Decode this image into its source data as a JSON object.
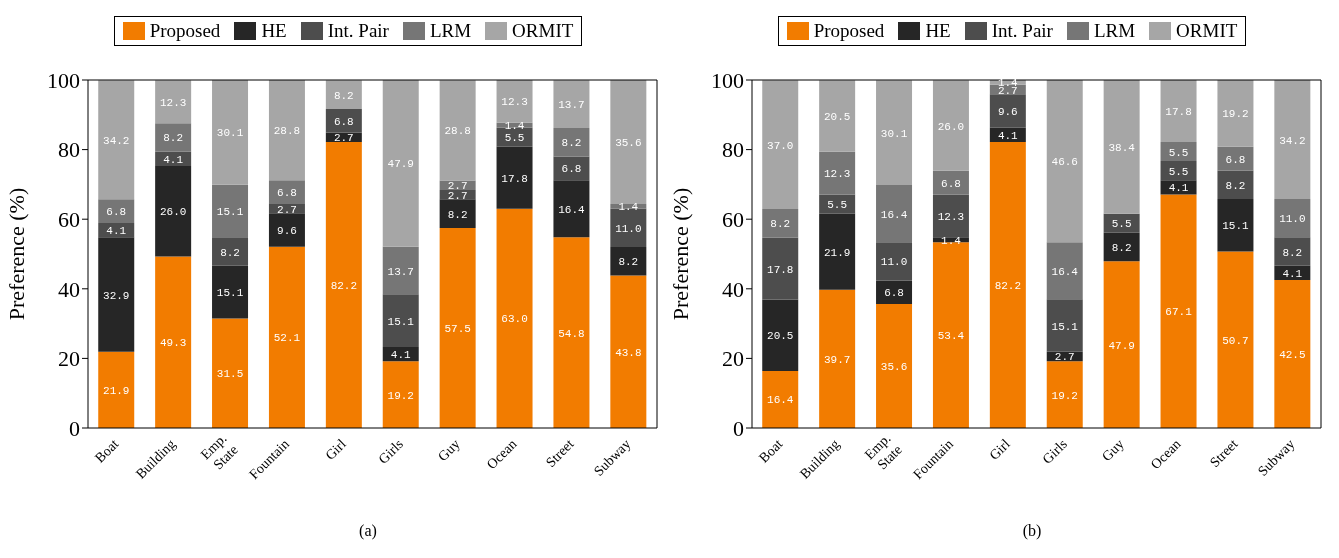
{
  "chart_data": [
    {
      "type": "bar",
      "stacked": true,
      "ylabel": "Preference (%)",
      "categories": [
        "Boat",
        "Building",
        "Emp. State",
        "Fountain",
        "Girl",
        "Girls",
        "Guy",
        "Ocean",
        "Street",
        "Subway"
      ],
      "ylim": [
        0,
        100
      ],
      "yticks": [
        0,
        20,
        40,
        60,
        80,
        100
      ],
      "legend": "top",
      "annotations": [
        "(a)"
      ],
      "series": [
        {
          "name": "Proposed",
          "color": "#f27c00",
          "values": [
            21.9,
            49.3,
            31.5,
            52.1,
            82.2,
            19.2,
            57.5,
            63.0,
            54.8,
            43.8
          ],
          "value_labels": [
            "21.9",
            "49.3",
            "31.5",
            "52.1",
            "82.2",
            "19.2",
            "57.5",
            "63.0",
            "54.8",
            "43.8"
          ]
        },
        {
          "name": "HE",
          "color": "#262626",
          "values": [
            32.9,
            26.0,
            15.1,
            9.6,
            2.7,
            4.1,
            8.2,
            17.8,
            16.4,
            8.2
          ],
          "value_labels": [
            "32.9",
            "26.0",
            "15.1",
            "9.6",
            "2.7",
            "4.1",
            "8.2",
            "17.8",
            "16.4",
            "8.2"
          ]
        },
        {
          "name": "Int. Pair",
          "color": "#4d4d4d",
          "values": [
            4.1,
            4.1,
            8.2,
            2.7,
            6.8,
            15.1,
            2.7,
            5.5,
            6.8,
            11.0
          ],
          "value_labels": [
            "4.1",
            "4.1",
            "8.2",
            "2.7",
            "6.8",
            "15.1",
            "2.7",
            "5.5",
            "6.8",
            "11.0"
          ]
        },
        {
          "name": "LRM",
          "color": "#767676",
          "values": [
            6.8,
            8.2,
            15.1,
            6.8,
            0,
            13.7,
            2.7,
            1.4,
            8.2,
            1.4
          ],
          "value_labels": [
            "6.8",
            "8.2",
            "15.1",
            "6.8",
            null,
            "13.7",
            "2.7",
            "1.4",
            "8.2",
            "1.4"
          ]
        },
        {
          "name": "ORMIT",
          "color": "#a6a6a6",
          "values": [
            34.2,
            12.3,
            30.1,
            28.8,
            8.2,
            47.9,
            28.8,
            12.3,
            13.7,
            35.6
          ],
          "value_labels": [
            "34.2",
            "12.3",
            "30.1",
            "28.8",
            "8.2",
            "47.9",
            "28.8",
            "12.3",
            "13.7",
            "35.6"
          ]
        }
      ]
    },
    {
      "type": "bar",
      "stacked": true,
      "ylabel": "Preference (%)",
      "categories": [
        "Boat",
        "Building",
        "Emp. State",
        "Fountain",
        "Girl",
        "Girls",
        "Guy",
        "Ocean",
        "Street",
        "Subway"
      ],
      "ylim": [
        0,
        100
      ],
      "yticks": [
        0,
        20,
        40,
        60,
        80,
        100
      ],
      "legend": "top",
      "annotations": [
        "(b)"
      ],
      "series": [
        {
          "name": "Proposed",
          "color": "#f27c00",
          "values": [
            16.4,
            39.7,
            35.6,
            53.4,
            82.2,
            19.2,
            47.9,
            67.1,
            50.7,
            42.5
          ],
          "value_labels": [
            "16.4",
            "39.7",
            "35.6",
            "53.4",
            "82.2",
            "19.2",
            "47.9",
            "67.1",
            "50.7",
            "42.5"
          ]
        },
        {
          "name": "HE",
          "color": "#262626",
          "values": [
            20.5,
            21.9,
            6.8,
            1.4,
            4.1,
            2.7,
            8.2,
            4.1,
            15.1,
            4.1
          ],
          "value_labels": [
            "20.5",
            "21.9",
            "6.8",
            "1.4",
            "4.1",
            "2.7",
            "8.2",
            "4.1",
            "15.1",
            "4.1"
          ]
        },
        {
          "name": "Int. Pair",
          "color": "#4d4d4d",
          "values": [
            17.8,
            5.5,
            11.0,
            12.3,
            9.6,
            15.1,
            5.5,
            5.5,
            8.2,
            8.2
          ],
          "value_labels": [
            "17.8",
            "5.5",
            "11.0",
            "12.3",
            "9.6",
            "15.1",
            "5.5",
            "5.5",
            "8.2",
            "8.2"
          ]
        },
        {
          "name": "LRM",
          "color": "#767676",
          "values": [
            8.2,
            12.3,
            16.4,
            6.8,
            2.7,
            16.4,
            0,
            5.5,
            6.8,
            11.0
          ],
          "value_labels": [
            "8.2",
            "12.3",
            "16.4",
            "6.8",
            "2.7",
            "16.4",
            null,
            "5.5",
            "6.8",
            "11.0"
          ]
        },
        {
          "name": "ORMIT",
          "color": "#a6a6a6",
          "values": [
            37.0,
            20.5,
            30.1,
            26.0,
            1.4,
            46.6,
            38.4,
            17.8,
            19.2,
            34.2
          ],
          "value_labels": [
            "37.0",
            "20.5",
            "30.1",
            "26.0",
            "1.4",
            "46.6",
            "38.4",
            "17.8",
            "19.2",
            "34.2"
          ]
        }
      ]
    }
  ]
}
